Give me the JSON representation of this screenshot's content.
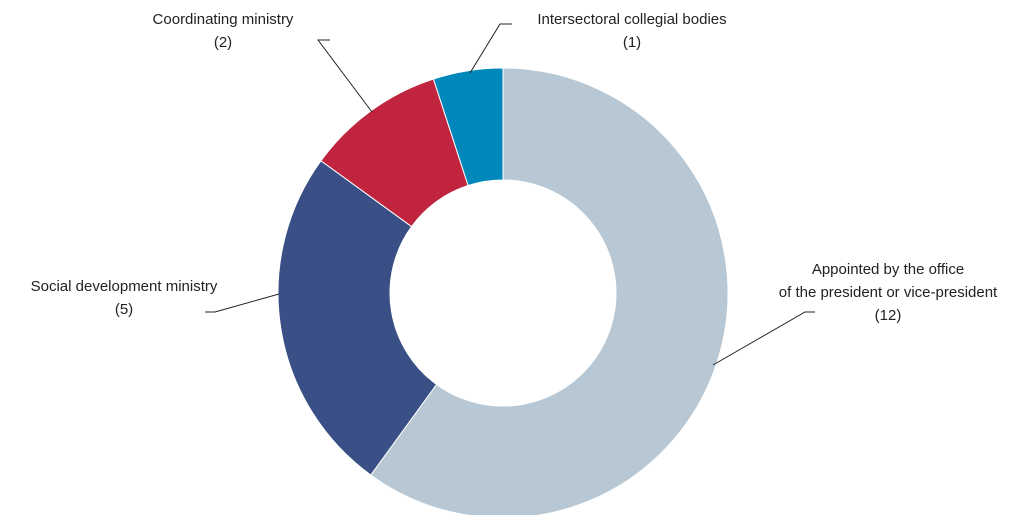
{
  "chart_data": {
    "type": "donut",
    "categories": [
      [
        "Appointed by the office",
        "of the president or vice-president"
      ],
      [
        "Social development ministry"
      ],
      [
        "Coordinating ministry"
      ],
      [
        "Intersectoral collegial bodies"
      ]
    ],
    "values": [
      12,
      5,
      2,
      1
    ],
    "value_labels": [
      "(12)",
      "(5)",
      "(2)",
      "(1)"
    ],
    "colors": [
      "#b7c8d4",
      "#394f86",
      "#c0243f",
      "#0088bb"
    ]
  }
}
